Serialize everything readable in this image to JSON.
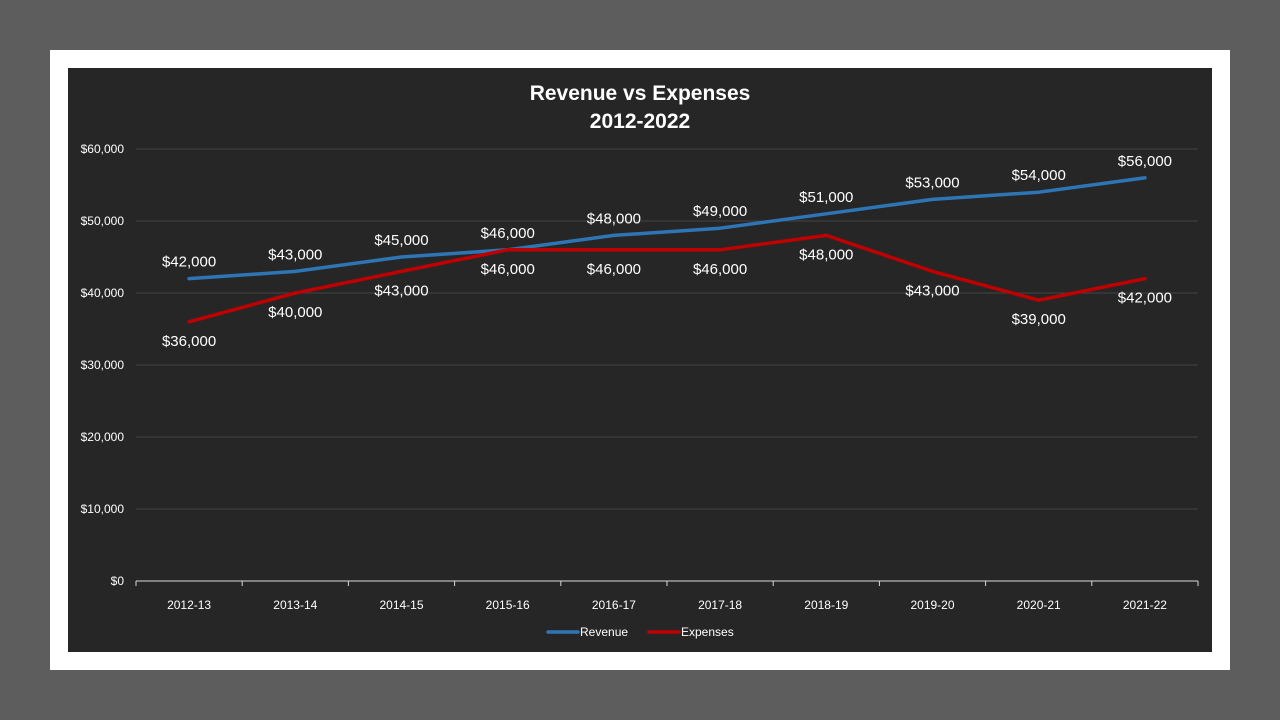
{
  "chart_data": {
    "type": "line",
    "title": [
      "Revenue vs Expenses",
      "2012-2022"
    ],
    "categories": [
      "2012-13",
      "2013-14",
      "2014-15",
      "2015-16",
      "2016-17",
      "2017-18",
      "2018-19",
      "2019-20",
      "2020-21",
      "2021-22"
    ],
    "series": [
      {
        "name": "Revenue",
        "color": "#2e75b6",
        "values": [
          42000,
          43000,
          45000,
          46000,
          48000,
          49000,
          51000,
          53000,
          54000,
          56000
        ],
        "labels": [
          "$42,000",
          "$43,000",
          "$45,000",
          "$46,000",
          "$48,000",
          "$49,000",
          "$51,000",
          "$53,000",
          "$54,000",
          "$56,000"
        ],
        "label_position": "above"
      },
      {
        "name": "Expenses",
        "color": "#c00000",
        "values": [
          36000,
          40000,
          43000,
          46000,
          46000,
          46000,
          48000,
          43000,
          39000,
          42000
        ],
        "labels": [
          "$36,000",
          "$40,000",
          "$43,000",
          "$46,000",
          "$46,000",
          "$46,000",
          "$48,000",
          "$43,000",
          "$39,000",
          "$42,000"
        ],
        "label_position": "below"
      }
    ],
    "yticks": [
      0,
      10000,
      20000,
      30000,
      40000,
      50000,
      60000
    ],
    "ytick_labels": [
      "$0",
      "$10,000",
      "$20,000",
      "$30,000",
      "$40,000",
      "$50,000",
      "$60,000"
    ],
    "ylim": [
      0,
      60000
    ],
    "grid": true,
    "legend": "bottom"
  }
}
